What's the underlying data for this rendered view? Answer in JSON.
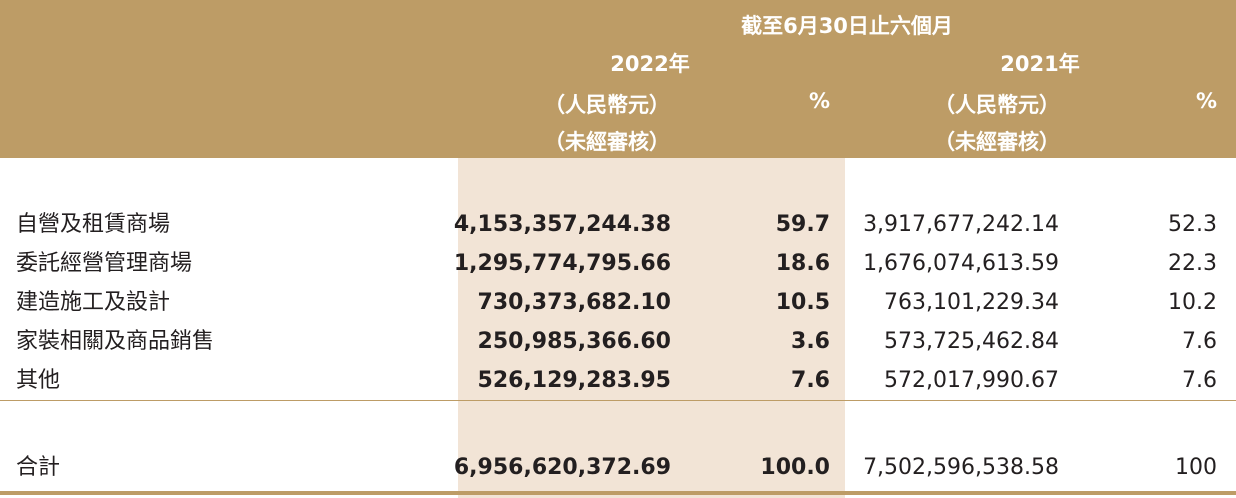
{
  "header": {
    "period": "截至6月30日止六個月",
    "year_2022": "2022年",
    "year_2021": "2021年",
    "currency_2022": "（人民幣元）",
    "audit_2022": "（未經審核）",
    "currency_2021": "（人民幣元）",
    "audit_2021": "（未經審核）",
    "pct_2022": "%",
    "pct_2021": "%"
  },
  "rows": [
    {
      "label": "自營及租賃商場",
      "amount_2022": "4,153,357,244.38",
      "pct_2022": "59.7",
      "amount_2021": "3,917,677,242.14",
      "pct_2021": "52.3"
    },
    {
      "label": "委託經營管理商場",
      "amount_2022": "1,295,774,795.66",
      "pct_2022": "18.6",
      "amount_2021": "1,676,074,613.59",
      "pct_2021": "22.3"
    },
    {
      "label": "建造施工及設計",
      "amount_2022": "730,373,682.10",
      "pct_2022": "10.5",
      "amount_2021": "763,101,229.34",
      "pct_2021": "10.2"
    },
    {
      "label": "家裝相關及商品銷售",
      "amount_2022": "250,985,366.60",
      "pct_2022": "3.6",
      "amount_2021": "573,725,462.84",
      "pct_2021": "7.6"
    },
    {
      "label": "其他",
      "amount_2022": "526,129,283.95",
      "pct_2022": "7.6",
      "amount_2021": "572,017,990.67",
      "pct_2021": "7.6"
    }
  ],
  "total": {
    "label": "合計",
    "amount_2022": "6,956,620,372.69",
    "pct_2022": "100.0",
    "amount_2021": "7,502,596,538.58",
    "pct_2021": "100"
  }
}
